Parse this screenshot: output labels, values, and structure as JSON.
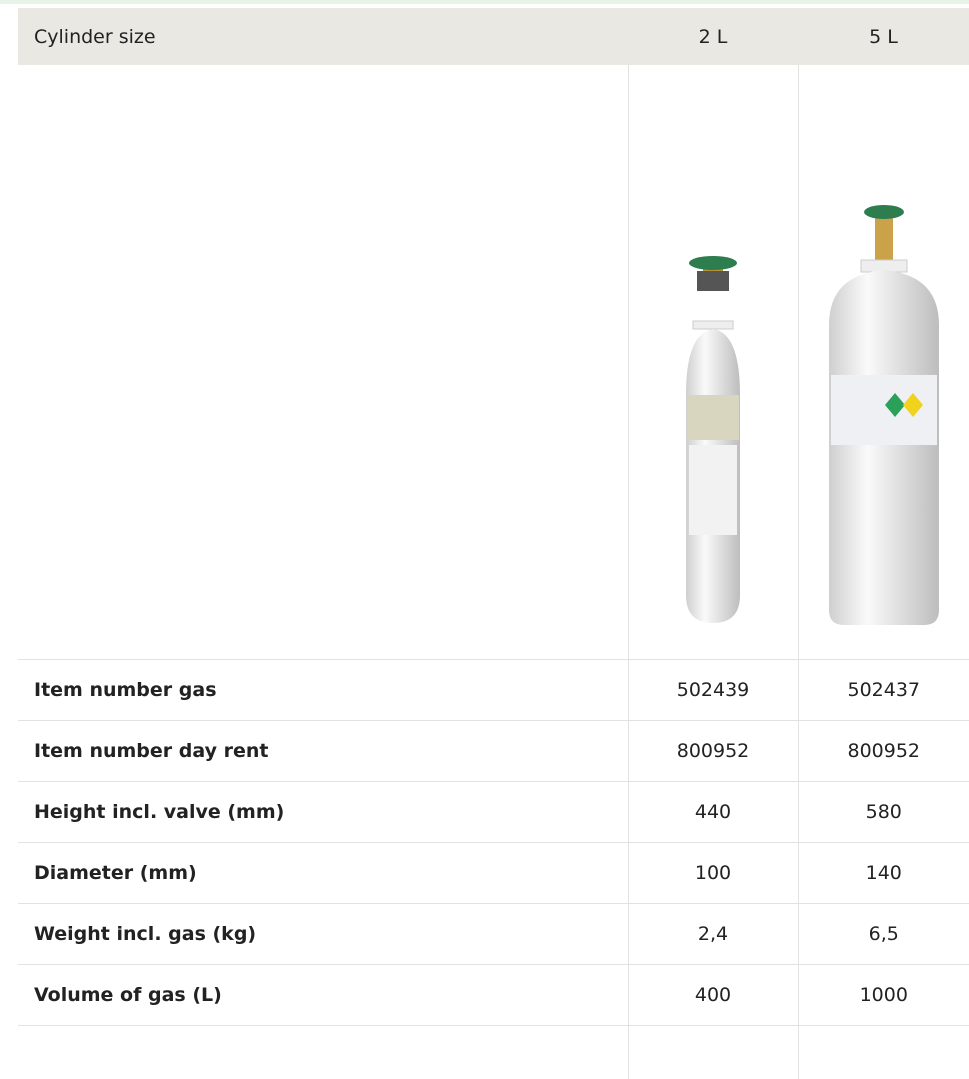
{
  "table": {
    "header": [
      "Cylinder size",
      "2 L",
      "5 L"
    ],
    "rows": [
      [
        "Item number gas",
        "502439",
        "502437"
      ],
      [
        "Item number day rent",
        "800952",
        "800952"
      ],
      [
        "Height incl. valve (mm)",
        "440",
        "580"
      ],
      [
        "Diameter (mm)",
        "100",
        "140"
      ],
      [
        "Weight incl. gas (kg)",
        "2,4",
        "6,5"
      ],
      [
        "Volume of gas (L)",
        "400",
        "1000"
      ]
    ]
  }
}
